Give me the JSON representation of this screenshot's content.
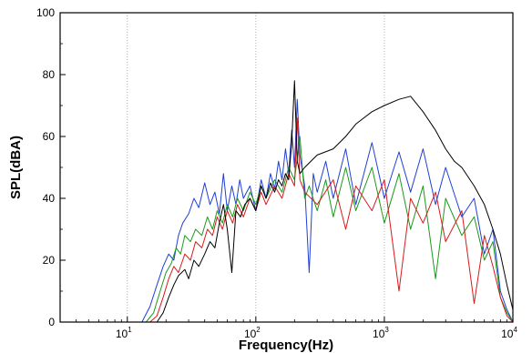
{
  "chart_data": {
    "type": "line",
    "title": "",
    "xlabel": "Frequency(Hz)",
    "ylabel": "SPL(dBA)",
    "x_scale": "log",
    "xlim": [
      3,
      10000
    ],
    "ylim": [
      0,
      100
    ],
    "x_ticks": [
      {
        "base": "10",
        "exp": "1",
        "value": 10
      },
      {
        "base": "10",
        "exp": "2",
        "value": 100
      },
      {
        "base": "10",
        "exp": "3",
        "value": 1000
      },
      {
        "base": "10",
        "exp": "4",
        "value": 10000
      }
    ],
    "y_ticks": [
      "0",
      "20",
      "40",
      "60",
      "80",
      "100"
    ],
    "grid": "vertical dotted lines at decades",
    "series": [
      {
        "color": "#1f3fd8",
        "points": [
          [
            13,
            0
          ],
          [
            15,
            5
          ],
          [
            17,
            12
          ],
          [
            19,
            18
          ],
          [
            21,
            22
          ],
          [
            23,
            20
          ],
          [
            25,
            28
          ],
          [
            27,
            32
          ],
          [
            30,
            35
          ],
          [
            33,
            40
          ],
          [
            36,
            37
          ],
          [
            40,
            45
          ],
          [
            44,
            38
          ],
          [
            48,
            42
          ],
          [
            52,
            35
          ],
          [
            56,
            48
          ],
          [
            60,
            36
          ],
          [
            65,
            44
          ],
          [
            70,
            38
          ],
          [
            75,
            46
          ],
          [
            80,
            40
          ],
          [
            90,
            44
          ],
          [
            100,
            36
          ],
          [
            110,
            46
          ],
          [
            120,
            40
          ],
          [
            130,
            48
          ],
          [
            140,
            43
          ],
          [
            150,
            52
          ],
          [
            160,
            46
          ],
          [
            170,
            56
          ],
          [
            180,
            48
          ],
          [
            190,
            62
          ],
          [
            200,
            50
          ],
          [
            210,
            72
          ],
          [
            220,
            54
          ],
          [
            240,
            44
          ],
          [
            260,
            16
          ],
          [
            280,
            48
          ],
          [
            300,
            42
          ],
          [
            350,
            52
          ],
          [
            400,
            40
          ],
          [
            500,
            56
          ],
          [
            600,
            38
          ],
          [
            800,
            58
          ],
          [
            1000,
            40
          ],
          [
            1300,
            55
          ],
          [
            1600,
            42
          ],
          [
            2000,
            56
          ],
          [
            2500,
            38
          ],
          [
            3000,
            50
          ],
          [
            4000,
            34
          ],
          [
            5000,
            40
          ],
          [
            6000,
            22
          ],
          [
            7000,
            30
          ],
          [
            8000,
            10
          ],
          [
            9000,
            4
          ],
          [
            10000,
            0
          ]
        ]
      },
      {
        "color": "#1a9a1a",
        "points": [
          [
            14,
            0
          ],
          [
            16,
            3
          ],
          [
            18,
            10
          ],
          [
            20,
            16
          ],
          [
            22,
            19
          ],
          [
            24,
            24
          ],
          [
            26,
            22
          ],
          [
            28,
            28
          ],
          [
            31,
            26
          ],
          [
            34,
            30
          ],
          [
            38,
            28
          ],
          [
            42,
            34
          ],
          [
            46,
            30
          ],
          [
            50,
            36
          ],
          [
            55,
            32
          ],
          [
            60,
            38
          ],
          [
            66,
            34
          ],
          [
            72,
            40
          ],
          [
            80,
            36
          ],
          [
            90,
            42
          ],
          [
            100,
            38
          ],
          [
            110,
            44
          ],
          [
            120,
            40
          ],
          [
            140,
            46
          ],
          [
            160,
            42
          ],
          [
            180,
            50
          ],
          [
            200,
            46
          ],
          [
            220,
            60
          ],
          [
            240,
            40
          ],
          [
            260,
            44
          ],
          [
            300,
            36
          ],
          [
            350,
            46
          ],
          [
            400,
            34
          ],
          [
            500,
            50
          ],
          [
            600,
            36
          ],
          [
            800,
            50
          ],
          [
            1000,
            32
          ],
          [
            1300,
            48
          ],
          [
            1600,
            30
          ],
          [
            2000,
            44
          ],
          [
            2500,
            14
          ],
          [
            3000,
            40
          ],
          [
            4000,
            28
          ],
          [
            5000,
            34
          ],
          [
            6000,
            20
          ],
          [
            7000,
            26
          ],
          [
            8000,
            8
          ],
          [
            9000,
            3
          ],
          [
            10000,
            0
          ]
        ]
      },
      {
        "color": "#d81a1a",
        "points": [
          [
            15,
            0
          ],
          [
            17,
            2
          ],
          [
            19,
            8
          ],
          [
            21,
            14
          ],
          [
            23,
            18
          ],
          [
            25,
            16
          ],
          [
            28,
            22
          ],
          [
            31,
            20
          ],
          [
            34,
            26
          ],
          [
            38,
            24
          ],
          [
            42,
            30
          ],
          [
            46,
            28
          ],
          [
            50,
            34
          ],
          [
            55,
            30
          ],
          [
            60,
            36
          ],
          [
            66,
            32
          ],
          [
            72,
            38
          ],
          [
            80,
            34
          ],
          [
            90,
            40
          ],
          [
            100,
            36
          ],
          [
            110,
            42
          ],
          [
            120,
            38
          ],
          [
            140,
            44
          ],
          [
            160,
            40
          ],
          [
            180,
            48
          ],
          [
            200,
            44
          ],
          [
            210,
            66
          ],
          [
            220,
            46
          ],
          [
            240,
            42
          ],
          [
            300,
            38
          ],
          [
            400,
            46
          ],
          [
            500,
            30
          ],
          [
            600,
            44
          ],
          [
            800,
            36
          ],
          [
            1000,
            46
          ],
          [
            1300,
            10
          ],
          [
            1600,
            40
          ],
          [
            2000,
            32
          ],
          [
            2500,
            42
          ],
          [
            3000,
            26
          ],
          [
            4000,
            36
          ],
          [
            5000,
            6
          ],
          [
            6000,
            28
          ],
          [
            7000,
            18
          ],
          [
            8000,
            8
          ],
          [
            9000,
            2
          ],
          [
            10000,
            0
          ]
        ]
      },
      {
        "color": "#000000",
        "points": [
          [
            17,
            0
          ],
          [
            19,
            3
          ],
          [
            21,
            8
          ],
          [
            23,
            12
          ],
          [
            25,
            15
          ],
          [
            28,
            17
          ],
          [
            30,
            14
          ],
          [
            33,
            20
          ],
          [
            36,
            18
          ],
          [
            40,
            22
          ],
          [
            44,
            26
          ],
          [
            48,
            24
          ],
          [
            52,
            32
          ],
          [
            56,
            38
          ],
          [
            60,
            30
          ],
          [
            65,
            16
          ],
          [
            70,
            36
          ],
          [
            76,
            34
          ],
          [
            82,
            38
          ],
          [
            90,
            40
          ],
          [
            100,
            36
          ],
          [
            110,
            44
          ],
          [
            120,
            40
          ],
          [
            130,
            45
          ],
          [
            140,
            42
          ],
          [
            150,
            46
          ],
          [
            160,
            44
          ],
          [
            170,
            48
          ],
          [
            180,
            46
          ],
          [
            190,
            58
          ],
          [
            200,
            78
          ],
          [
            210,
            52
          ],
          [
            220,
            48
          ],
          [
            240,
            50
          ],
          [
            300,
            54
          ],
          [
            400,
            56
          ],
          [
            500,
            60
          ],
          [
            600,
            64
          ],
          [
            800,
            68
          ],
          [
            1000,
            70
          ],
          [
            1300,
            72
          ],
          [
            1600,
            73
          ],
          [
            2000,
            68
          ],
          [
            2500,
            62
          ],
          [
            3000,
            56
          ],
          [
            3500,
            52
          ],
          [
            4000,
            50
          ],
          [
            5000,
            44
          ],
          [
            6000,
            38
          ],
          [
            7000,
            30
          ],
          [
            8000,
            22
          ],
          [
            9000,
            12
          ],
          [
            10000,
            4
          ]
        ]
      }
    ]
  }
}
